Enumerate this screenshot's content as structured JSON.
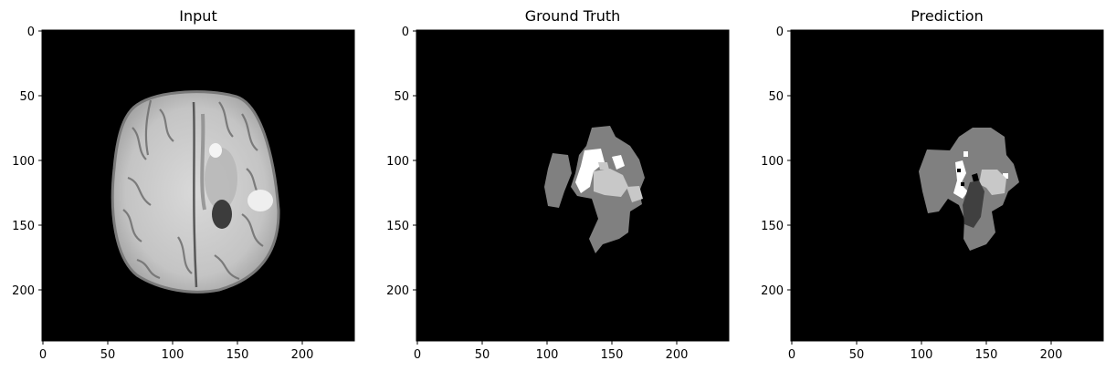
{
  "figure": {
    "background": "#ffffff",
    "axis_color": "#000000",
    "panels": [
      {
        "id": "input",
        "title": "Input",
        "image": "axial brain MRI slice (grayscale)",
        "x_ticks": [
          "0",
          "50",
          "100",
          "150",
          "200"
        ],
        "y_ticks": [
          "0",
          "50",
          "100",
          "150",
          "200"
        ]
      },
      {
        "id": "ground-truth",
        "title": "Ground Truth",
        "image": "tumor segmentation mask",
        "x_ticks": [
          "0",
          "50",
          "100",
          "150",
          "200"
        ],
        "y_ticks": [
          "0",
          "50",
          "100",
          "150",
          "200"
        ]
      },
      {
        "id": "prediction",
        "title": "Prediction",
        "image": "predicted segmentation mask",
        "x_ticks": [
          "0",
          "50",
          "100",
          "150",
          "200"
        ],
        "y_ticks": [
          "0",
          "50",
          "100",
          "150",
          "200"
        ]
      }
    ],
    "colors": {
      "background": "#000000",
      "label_edema": "#808080",
      "label_enhancing": "#ffffff",
      "label_core": "#c8c8c8",
      "label_dark": "#404040"
    }
  }
}
